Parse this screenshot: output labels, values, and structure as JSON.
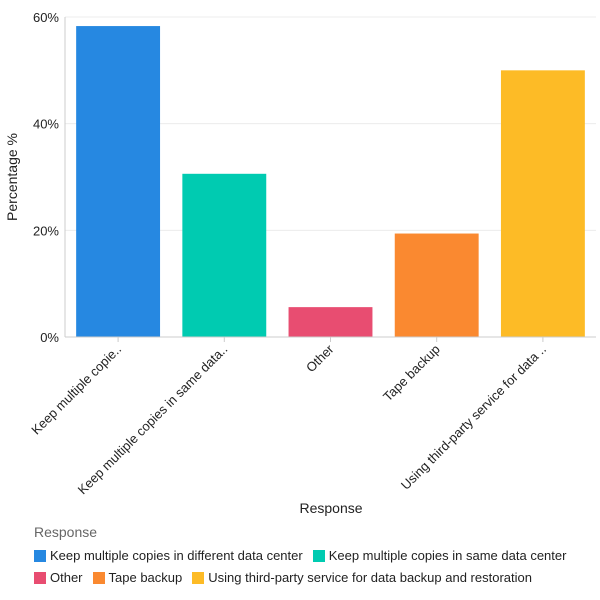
{
  "chart_data": {
    "type": "bar",
    "title": "",
    "xlabel": "Response",
    "ylabel": "Percentage %",
    "ylim": [
      0,
      60
    ],
    "y_ticks": [
      0,
      20,
      40,
      60
    ],
    "y_tick_labels": [
      "0%",
      "20%",
      "40%",
      "60%"
    ],
    "categories": [
      "Keep multiple copies in different data center",
      "Keep multiple copies in same data center",
      "Other",
      "Tape backup",
      "Using third-party service for data backup and restoration"
    ],
    "tick_labels": [
      "Keep multiple copie..",
      "Keep multiple copies in same data..",
      "Other",
      "Tape backup",
      "Using third-party service for data .."
    ],
    "values": [
      58.3,
      30.6,
      5.6,
      19.4,
      50.0
    ],
    "colors": [
      "#2688e1",
      "#00cbb1",
      "#e84d71",
      "#fa8930",
      "#fdbb26"
    ],
    "legend_title": "Response",
    "legend_position": "bottom-left",
    "grid": true
  }
}
